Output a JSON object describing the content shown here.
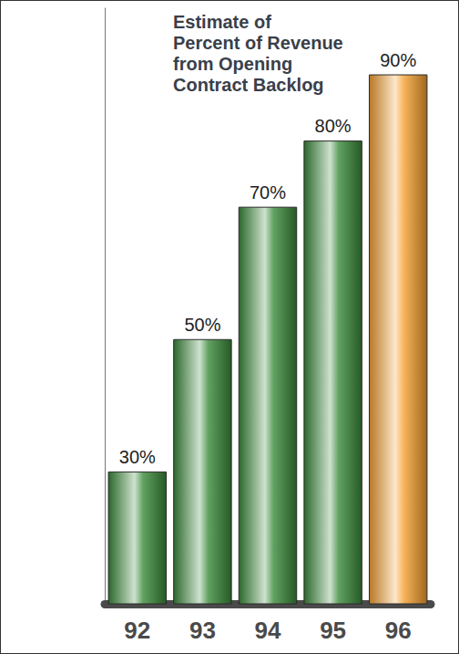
{
  "chart_data": {
    "type": "bar",
    "title": "Estimate of Percent of Revenue from Opening Contract Backlog",
    "categories": [
      "92",
      "93",
      "94",
      "95",
      "96"
    ],
    "values": [
      30,
      50,
      70,
      80,
      90
    ],
    "value_labels": [
      "30%",
      "50%",
      "70%",
      "80%",
      "90%"
    ],
    "colors": [
      "#3a8a3a",
      "#3a8a3a",
      "#3a8a3a",
      "#3a8a3a",
      "#f5a030"
    ],
    "ylim": [
      10,
      100
    ],
    "data_labels": true,
    "tick_labels": "x",
    "grid": false
  }
}
